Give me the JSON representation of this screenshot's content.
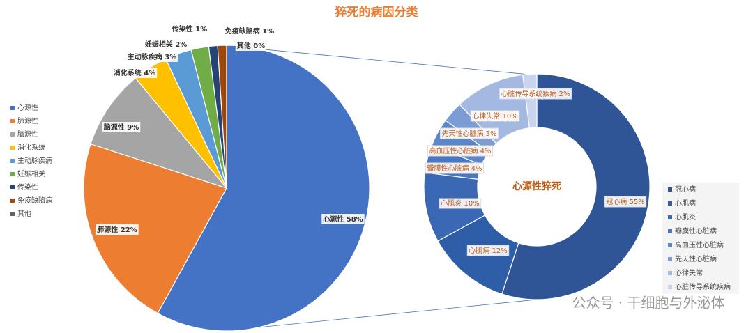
{
  "chart_data": [
    {
      "type": "pie",
      "title": "猝死的病因分类",
      "categories": [
        "心源性",
        "肺源性",
        "脑源性",
        "消化系统",
        "主动脉疾病",
        "妊娠相关",
        "传染性",
        "免疫缺陷病",
        "其他"
      ],
      "values": [
        58,
        22,
        9,
        4,
        3,
        2,
        1,
        1,
        0
      ],
      "value_labels": [
        "心源性 58%",
        "肺源性 22%",
        "脑源性 9%",
        "消化系统 4%",
        "主动脉疾病 3%",
        "妊娠相关 2%",
        "传染性 1%",
        "免疫缺陷病 1%",
        "其他 0%"
      ],
      "colors": [
        "#4472c4",
        "#ed7d31",
        "#a5a5a5",
        "#ffc000",
        "#5b9bd5",
        "#70ad47",
        "#264478",
        "#9e480e",
        "#636363"
      ],
      "legend": "left"
    },
    {
      "type": "donut",
      "title": "心源性猝死",
      "categories": [
        "冠心病",
        "心肌病",
        "心肌炎",
        "瓣膜性心脏病",
        "高血压性心脏病",
        "先天性心脏病",
        "心律失常",
        "心脏传导系统疾病"
      ],
      "values": [
        55,
        12,
        10,
        4,
        4,
        3,
        10,
        2
      ],
      "value_labels": [
        "冠心病 55%",
        "心肌病 12%",
        "心肌炎 10%",
        "瓣膜性心脏病 4%",
        "高血压性心脏病 4%",
        "先天性心脏病 3%",
        "心律失常 10%",
        "心脏传导系统疾病 2%"
      ],
      "colors": [
        "#2f5597",
        "#2e5ea8",
        "#3a68b5",
        "#4a78c0",
        "#5b87c8",
        "#7b9dd3",
        "#a4b9e2",
        "#c9d5ef"
      ],
      "legend": "right"
    }
  ],
  "watermark": "公众号 · 干细胞与外泌体"
}
